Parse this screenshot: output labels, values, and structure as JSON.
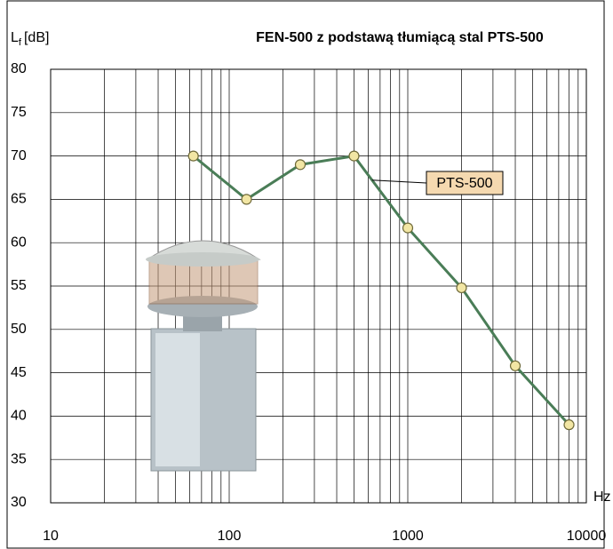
{
  "chart_data": {
    "type": "line",
    "title": "FEN-500 z podstawą tłumiącą stal PTS-500",
    "y_label": "L",
    "y_label_sub": "f",
    "y_label_unit": "[dB]",
    "x_label": "Hz",
    "x": [
      63,
      125,
      250,
      500,
      1000,
      2000,
      4000,
      8000
    ],
    "series": [
      {
        "name": "PTS-500",
        "color": "#4a7d57",
        "marker_color": "#f2e6a4",
        "values": [
          70,
          65,
          69,
          70,
          61.7,
          54.8,
          45.8,
          39
        ]
      }
    ],
    "xlim": [
      10,
      10000
    ],
    "xticks": [
      10,
      100,
      1000,
      10000
    ],
    "xlog": true,
    "ylim": [
      30,
      80
    ],
    "yticks": [
      30,
      35,
      40,
      45,
      50,
      55,
      60,
      65,
      70,
      75,
      80
    ],
    "grid": true,
    "minor_grid": true
  }
}
